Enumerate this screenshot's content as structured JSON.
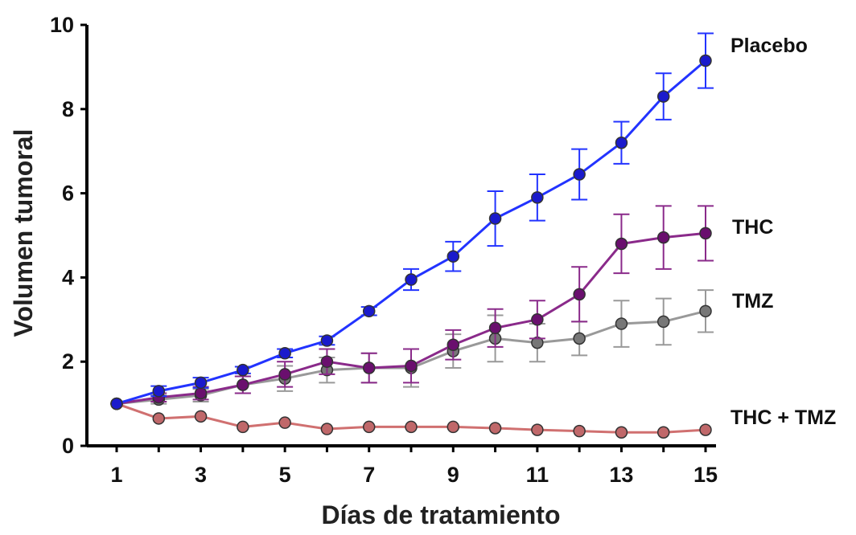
{
  "chart_data": {
    "type": "line",
    "title": "",
    "xlabel": "Días de tratamiento",
    "ylabel": "Volumen tumoral",
    "xlim": [
      1,
      15
    ],
    "ylim": [
      0,
      10
    ],
    "xticks": [
      "1",
      "3",
      "5",
      "7",
      "9",
      "11",
      "13",
      "15"
    ],
    "yticks": [
      "0",
      "2",
      "4",
      "6",
      "8",
      "10"
    ],
    "grid": false,
    "legend": "direct labels at right end of each line",
    "x": [
      1,
      2,
      3,
      4,
      5,
      6,
      7,
      8,
      9,
      10,
      11,
      12,
      13,
      14,
      15
    ],
    "series": [
      {
        "name": "Placebo",
        "color": "#1a1acc",
        "line_color": "#2233ff",
        "values": [
          1.0,
          1.3,
          1.5,
          1.8,
          2.2,
          2.5,
          3.2,
          3.95,
          4.5,
          5.4,
          5.9,
          6.45,
          7.2,
          8.3,
          9.15
        ],
        "errors": [
          0,
          0.12,
          0.12,
          0.08,
          0.1,
          0.1,
          0.1,
          0.25,
          0.35,
          0.65,
          0.55,
          0.6,
          0.5,
          0.55,
          0.65
        ]
      },
      {
        "name": "THC",
        "color": "#6a0f6e",
        "line_color": "#8a2a8a",
        "values": [
          1.0,
          1.15,
          1.25,
          1.45,
          1.7,
          2.0,
          1.85,
          1.9,
          2.4,
          2.8,
          3.0,
          3.6,
          4.8,
          4.95,
          5.05
        ],
        "errors": [
          0,
          0.1,
          0.15,
          0.2,
          0.3,
          0.3,
          0.35,
          0.4,
          0.35,
          0.45,
          0.45,
          0.65,
          0.7,
          0.75,
          0.65
        ]
      },
      {
        "name": "TMZ",
        "color": "#777777",
        "line_color": "#999999",
        "values": [
          1.0,
          1.1,
          1.2,
          1.45,
          1.6,
          1.8,
          1.85,
          1.85,
          2.25,
          2.55,
          2.45,
          2.55,
          2.9,
          2.95,
          3.2
        ],
        "errors": [
          0,
          0.1,
          0.15,
          0.2,
          0.3,
          0.3,
          0.35,
          0.45,
          0.4,
          0.55,
          0.45,
          0.4,
          0.55,
          0.55,
          0.5
        ]
      },
      {
        "name": "THC + TMZ",
        "color": "#c0686a",
        "line_color": "#d07070",
        "values": [
          1.0,
          0.65,
          0.7,
          0.45,
          0.55,
          0.4,
          0.45,
          0.45,
          0.45,
          0.42,
          0.38,
          0.35,
          0.32,
          0.32,
          0.38
        ],
        "errors": [
          0,
          0,
          0,
          0,
          0,
          0,
          0,
          0,
          0,
          0,
          0,
          0,
          0,
          0,
          0
        ]
      }
    ]
  }
}
